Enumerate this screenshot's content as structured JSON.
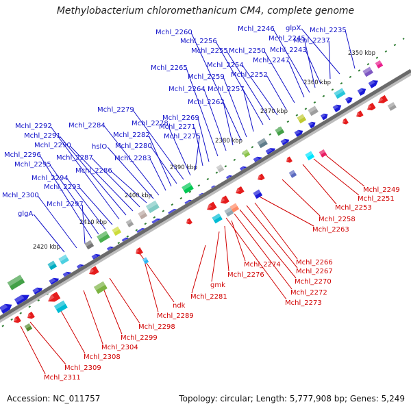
{
  "title": "Methylobacterium chloromethanicum CM4, complete genome",
  "footer": {
    "accession": "Accession: NC_011757",
    "summary": "Topology: circular; Length: 5,777,908 bp; Genes: 5,249"
  },
  "colors": {
    "plus_label": "#1010c8",
    "minus_label": "#d00000",
    "backbone": "#6f6f6f",
    "tick": "#2e7d32"
  },
  "scale_labels": [
    "2350 kbp",
    "2360 kbp",
    "2370 kbp",
    "2380 kbp",
    "2390 kbp",
    "2400 kbp",
    "2410 kbp",
    "2420 kbp"
  ],
  "plus_labels": [
    "Mchl_2235",
    "glpX",
    "Mchl_2237",
    "Mchl_2243",
    "Mchl_2245",
    "Mchl_2246",
    "Mchl_2247",
    "Mchl_2250",
    "Mchl_2252",
    "Mchl_2254",
    "Mchl_2255",
    "Mchl_2256",
    "Mchl_2257",
    "Mchl_2259",
    "Mchl_2260",
    "Mchl_2262",
    "Mchl_2264",
    "Mchl_2265",
    "Mchl_2269",
    "Mchl_2271",
    "Mchl_2275",
    "Mchl_2278",
    "Mchl_2279",
    "Mchl_2280",
    "Mchl_2282",
    "Mchl_2283",
    "Mchl_2284",
    "hslO",
    "Mchl_2286",
    "Mchl_2287",
    "Mchl_2290",
    "Mchl_2291",
    "Mchl_2292",
    "Mchl_2293",
    "Mchl_2294",
    "Mchl_2295",
    "Mchl_2296",
    "Mchl_2297",
    "Mchl_2300",
    "glgA"
  ],
  "minus_labels": [
    "Mchl_2249",
    "Mchl_2251",
    "Mchl_2253",
    "Mchl_2258",
    "Mchl_2263",
    "Mchl_2266",
    "Mchl_2267",
    "Mchl_2270",
    "Mchl_2272",
    "Mchl_2273",
    "Mchl_2274",
    "Mchl_2276",
    "gmk",
    "Mchl_2281",
    "ndk",
    "Mchl_2289",
    "Mchl_2298",
    "Mchl_2299",
    "Mchl_2304",
    "Mchl_2308",
    "Mchl_2309",
    "Mchl_2311"
  ]
}
